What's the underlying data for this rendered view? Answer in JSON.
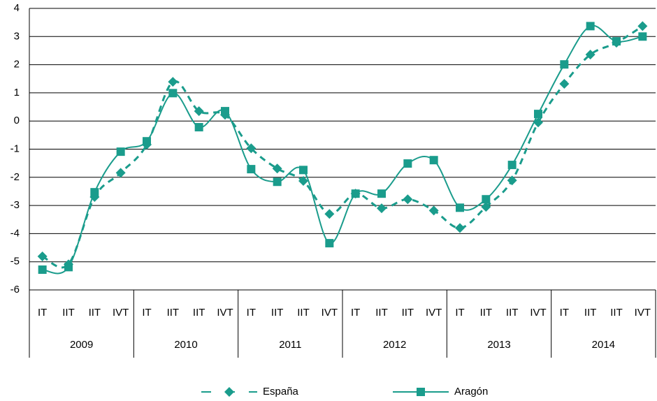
{
  "chart_data": {
    "type": "line",
    "categories": [
      "IT",
      "IIT",
      "IIT",
      "IVT",
      "IT",
      "IIT",
      "IIT",
      "IVT",
      "IT",
      "IIT",
      "IIT",
      "IVT",
      "IT",
      "IIT",
      "IIT",
      "IVT",
      "IT",
      "IIT",
      "IIT",
      "IVT",
      "IT",
      "IIT",
      "IIT",
      "IVT"
    ],
    "groups": [
      "2009",
      "2010",
      "2011",
      "2012",
      "2013",
      "2014"
    ],
    "series": [
      {
        "name": "España",
        "color": "#1a9c8c",
        "dash": true,
        "marker": "diamond",
        "values": [
          -4.81,
          -5.09,
          -2.7,
          -1.84,
          -0.84,
          1.39,
          0.35,
          0.22,
          -0.97,
          -1.69,
          -2.13,
          -3.3,
          -2.58,
          -3.1,
          -2.78,
          -3.18,
          -3.8,
          -3.05,
          -2.11,
          -0.05,
          1.32,
          2.36,
          2.78,
          3.37
        ]
      },
      {
        "name": "Aragón",
        "color": "#1a9c8c",
        "dash": false,
        "marker": "square",
        "values": [
          -5.28,
          -5.19,
          -2.53,
          -1.09,
          -0.72,
          0.99,
          -0.22,
          0.35,
          -1.71,
          -2.16,
          -1.74,
          -4.34,
          -2.58,
          -2.58,
          -1.51,
          -1.39,
          -3.08,
          -2.78,
          -1.56,
          0.25,
          2.01,
          3.37,
          2.83,
          3.0
        ]
      }
    ],
    "ylim": [
      -6,
      4
    ],
    "yticks": [
      4,
      3,
      2,
      1,
      0,
      -1,
      -2,
      -3,
      -4,
      -5,
      -6
    ],
    "grid": true,
    "legend": "bottom"
  }
}
